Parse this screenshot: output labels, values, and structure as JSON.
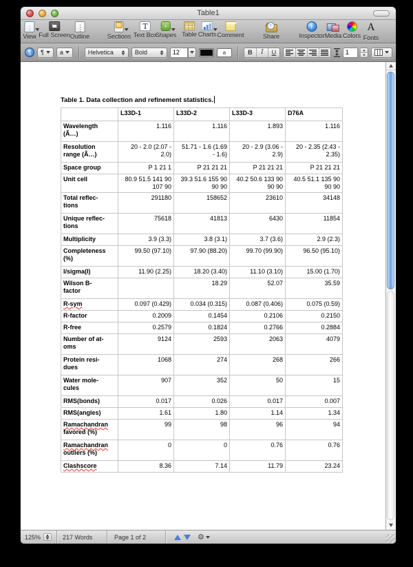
{
  "window": {
    "title": "Table1"
  },
  "toolbar": {
    "items": [
      {
        "id": "view",
        "label": "View",
        "arrow": true
      },
      {
        "id": "fullscreen",
        "label": "Full Screen",
        "arrow": false
      },
      {
        "id": "outline",
        "label": "Outline",
        "arrow": false
      },
      {
        "id": "sections",
        "label": "Sections",
        "arrow": true
      },
      {
        "id": "textbox",
        "label": "Text Box",
        "arrow": false
      },
      {
        "id": "shapes",
        "label": "Shapes",
        "arrow": true
      },
      {
        "id": "table",
        "label": "Table",
        "arrow": false
      },
      {
        "id": "charts",
        "label": "Charts",
        "arrow": true
      },
      {
        "id": "comment",
        "label": "Comment",
        "arrow": false
      },
      {
        "id": "share",
        "label": "Share",
        "arrow": false
      },
      {
        "id": "inspector",
        "label": "Inspector",
        "arrow": false
      },
      {
        "id": "media",
        "label": "Media",
        "arrow": false
      },
      {
        "id": "colors",
        "label": "Colors",
        "arrow": false
      },
      {
        "id": "fonts",
        "label": "Fonts",
        "arrow": false
      }
    ]
  },
  "format_bar": {
    "para_symbol": "¶",
    "char_symbol": "a",
    "font_family": "Helvetica",
    "typeface": "Bold",
    "font_size": "12",
    "text_bg_letter": "a",
    "bold": "B",
    "italic": "I",
    "underline": "U",
    "line_spacing": "1"
  },
  "document": {
    "title": "Table 1.  Data collection and refinement statistics.",
    "table": {
      "columns": [
        "",
        "L33D-1",
        "L33D-2",
        "L33D-3",
        "D76A"
      ],
      "rows": [
        {
          "label": "Wavelength\n(Ã…)",
          "values": [
            "1.116",
            "1.116",
            "1.893",
            "1.116"
          ]
        },
        {
          "label": "Resolution\nrange (Ã…)",
          "values": [
            "20  - 2.0 (2.07 -\n2.0)",
            "51.71  - 1.6 (1.69\n- 1.6)",
            "20  - 2.9 (3.06 -\n2.9)",
            "20  - 2.35 (2.43 -\n2.35)"
          ]
        },
        {
          "label": "Space group",
          "values": [
            "P 1 21 1",
            "P 21 21 21",
            "P 21 21 21",
            "P 21 21 21"
          ]
        },
        {
          "label": "Unit cell",
          "values": [
            "80.9 51.5 141 90\n107 90",
            "39.3 51.6 155 90\n90 90",
            "40.2 50.6 133 90\n90 90",
            "40.5 51.1 135 90\n90 90"
          ]
        },
        {
          "label": "Total reflec-\ntions",
          "values": [
            "291180",
            "158652",
            "23610",
            "34148"
          ]
        },
        {
          "label": "Unique reflec-\ntions",
          "values": [
            "75618",
            "41813",
            "6430",
            "11854"
          ]
        },
        {
          "label": "Multiplicity",
          "values": [
            "3.9 (3.3)",
            "3.8 (3.1)",
            "3.7 (3.6)",
            "2.9 (2.3)"
          ]
        },
        {
          "label": "Completeness\n(%)",
          "values": [
            "99.50 (97.10)",
            "97.90 (88.20)",
            "99.70 (99.90)",
            "96.50 (95.10)"
          ]
        },
        {
          "label": "I/sigma(I)",
          "values": [
            "11.90 (2.25)",
            "18.20 (3.40)",
            "11.10 (3.10)",
            "15.00 (1.70)"
          ]
        },
        {
          "label": "Wilson B-\nfactor",
          "values": [
            "",
            "18.29",
            "52.07",
            "35.59"
          ]
        },
        {
          "label": "R-sym",
          "squiggle": true,
          "values": [
            "0.097 (0.429)",
            "0.034 (0.315)",
            "0.087 (0.406)",
            "0.075 (0.59)"
          ]
        },
        {
          "label": "R-factor",
          "values": [
            "0.2009",
            "0.1454",
            "0.2106",
            "0.2150"
          ]
        },
        {
          "label": "R-free",
          "values": [
            "0.2579",
            "0.1824",
            "0.2766",
            "0.2884"
          ]
        },
        {
          "label": "Number of at-\noms",
          "values": [
            "9124",
            "2593",
            "2063",
            "4079"
          ]
        },
        {
          "label": "Protein resi-\ndues",
          "values": [
            "1068",
            "274",
            "268",
            "266"
          ]
        },
        {
          "label": "Water mole-\ncules",
          "values": [
            "907",
            "352",
            "50",
            "15"
          ]
        },
        {
          "label": "RMS(bonds)",
          "values": [
            "0.017",
            "0.026",
            "0.017",
            "0.007"
          ]
        },
        {
          "label": "RMS(angles)",
          "values": [
            "1.61",
            "1.80",
            "1.14",
            "1.34"
          ]
        },
        {
          "label": "Ramachandran\nfavored (%)",
          "squiggle": true,
          "values": [
            "99",
            "98",
            "96",
            "94"
          ]
        },
        {
          "label": "Ramachandran\noutliers (%)",
          "squiggle": true,
          "values": [
            "0",
            "0",
            "0.76",
            "0.76"
          ]
        },
        {
          "label": "Clashscore",
          "squiggle": true,
          "values": [
            "8.36",
            "7.14",
            "11.79",
            "23.24"
          ]
        }
      ]
    }
  },
  "status_bar": {
    "zoom": "125%",
    "word_count": "217 Words",
    "page": "Page 1 of 2"
  }
}
